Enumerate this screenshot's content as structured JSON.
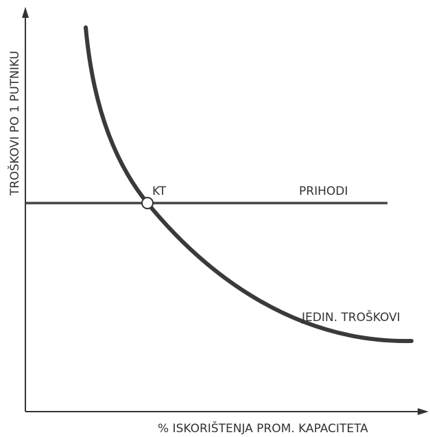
{
  "diagram": {
    "y_axis_label": "TROŠKOVI PO 1 PUTNIKU",
    "x_axis_label": "% ISKORIŠTENJA PROM. KAPACITETA",
    "revenue_line_label": "PRIHODI",
    "cost_curve_label": "JEDIN. TROŠKOVI",
    "point_label": "KT"
  }
}
